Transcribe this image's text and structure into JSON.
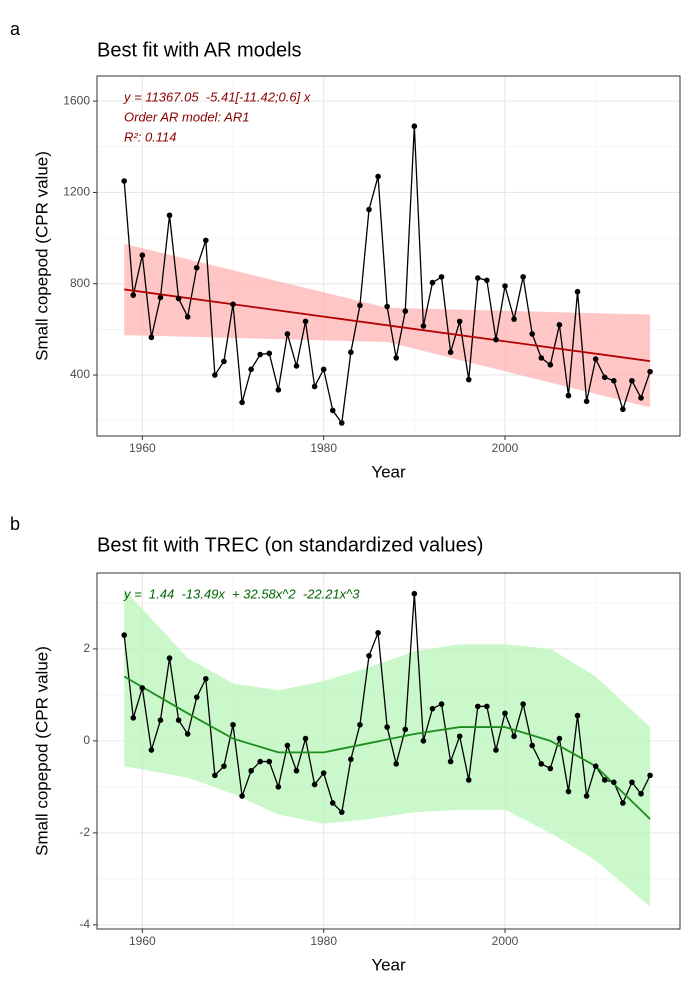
{
  "chart_data": [
    {
      "type": "line",
      "panel": "a",
      "title": "Best fit with AR models",
      "x_label": "Year",
      "y_label": "Small copepod (CPR value)",
      "annotations": [
        "y = 11367.05  -5.41[-11.42;0.6] x",
        "Order AR model: AR1",
        "R²: 0.114"
      ],
      "annotation_color": "#8b0000",
      "x": [
        1958,
        1959,
        1960,
        1961,
        1962,
        1963,
        1964,
        1965,
        1966,
        1967,
        1968,
        1969,
        1970,
        1971,
        1972,
        1973,
        1974,
        1975,
        1976,
        1977,
        1978,
        1979,
        1980,
        1981,
        1982,
        1983,
        1984,
        1985,
        1986,
        1987,
        1988,
        1989,
        1990,
        1991,
        1992,
        1993,
        1994,
        1995,
        1996,
        1997,
        1998,
        1999,
        2000,
        2001,
        2002,
        2003,
        2004,
        2005,
        2006,
        2007,
        2008,
        2009,
        2010,
        2011,
        2012,
        2013,
        2014,
        2015,
        2016
      ],
      "values": [
        1250,
        750,
        925,
        565,
        740,
        1100,
        735,
        655,
        870,
        990,
        400,
        460,
        710,
        280,
        425,
        490,
        495,
        335,
        580,
        440,
        635,
        350,
        425,
        245,
        190,
        500,
        705,
        1125,
        1270,
        700,
        475,
        680,
        1490,
        615,
        805,
        830,
        500,
        635,
        380,
        825,
        815,
        555,
        790,
        645,
        830,
        580,
        475,
        445,
        620,
        310,
        765,
        285,
        470,
        390,
        375,
        250,
        375,
        300,
        415
      ],
      "color": "#000000",
      "fit": {
        "x": [
          1958,
          2016
        ],
        "values": [
          775,
          461
        ],
        "color": "#b30000"
      },
      "band": {
        "x": [
          1958,
          1987,
          2016
        ],
        "lower": [
          575,
          545,
          258
        ],
        "upper": [
          975,
          695,
          665
        ],
        "color": "#ffb3b3"
      },
      "xlim": [
        1955,
        2019.3
      ],
      "ylim": [
        133,
        1710
      ],
      "xticks": [
        1960,
        1980,
        2000
      ],
      "yticks": [
        400,
        800,
        1200,
        1600
      ],
      "grid": true
    },
    {
      "type": "line",
      "panel": "b",
      "title": "Best fit with TREC (on standardized values)",
      "x_label": "Year",
      "y_label": "Small copepod (CPR value)",
      "annotations": [
        "y =  1.44  -13.49x  + 32.58x^2  -22.21x^3"
      ],
      "annotation_color": "#006400",
      "x": [
        1958,
        1959,
        1960,
        1961,
        1962,
        1963,
        1964,
        1965,
        1966,
        1967,
        1968,
        1969,
        1970,
        1971,
        1972,
        1973,
        1974,
        1975,
        1976,
        1977,
        1978,
        1979,
        1980,
        1981,
        1982,
        1983,
        1984,
        1985,
        1986,
        1987,
        1988,
        1989,
        1990,
        1991,
        1992,
        1993,
        1994,
        1995,
        1996,
        1997,
        1998,
        1999,
        2000,
        2001,
        2002,
        2003,
        2004,
        2005,
        2006,
        2007,
        2008,
        2009,
        2010,
        2011,
        2012,
        2013,
        2014,
        2015,
        2016
      ],
      "values": [
        2.3,
        0.5,
        1.15,
        -0.2,
        0.45,
        1.8,
        0.45,
        0.15,
        0.95,
        1.35,
        -0.75,
        -0.55,
        0.35,
        -1.2,
        -0.65,
        -0.45,
        -0.45,
        -1.0,
        -0.1,
        -0.65,
        0.05,
        -0.95,
        -0.7,
        -1.35,
        -1.55,
        -0.4,
        0.35,
        1.85,
        2.35,
        0.3,
        -0.5,
        0.25,
        3.2,
        0.0,
        0.7,
        0.8,
        -0.45,
        0.1,
        -0.85,
        0.75,
        0.75,
        -0.2,
        0.6,
        0.1,
        0.8,
        -0.1,
        -0.5,
        -0.6,
        0.05,
        -1.1,
        0.55,
        -1.2,
        -0.55,
        -0.85,
        -0.9,
        -1.35,
        -0.9,
        -1.15,
        -0.75
      ],
      "color": "#000000",
      "fit": {
        "x": [
          1958,
          1965,
          1970,
          1975,
          1980,
          1985,
          1990,
          1995,
          2000,
          2005,
          2010,
          2016
        ],
        "values": [
          1.4,
          0.6,
          0.05,
          -0.25,
          -0.25,
          -0.05,
          0.15,
          0.3,
          0.3,
          0.0,
          -0.55,
          -1.7
        ],
        "color": "#1e8c1e"
      },
      "band": {
        "x": [
          1958,
          1965,
          1970,
          1975,
          1980,
          1985,
          1990,
          1995,
          2000,
          2005,
          2010,
          2016
        ],
        "lower": [
          -0.55,
          -0.8,
          -1.15,
          -1.6,
          -1.8,
          -1.7,
          -1.55,
          -1.5,
          -1.5,
          -2.0,
          -2.6,
          -3.6
        ],
        "upper": [
          3.3,
          1.8,
          1.25,
          1.1,
          1.3,
          1.6,
          1.95,
          2.1,
          2.1,
          2.0,
          1.4,
          0.3
        ],
        "color": "#b8f5b8"
      },
      "xlim": [
        1955,
        2019.3
      ],
      "ylim": [
        -4.09,
        3.65
      ],
      "xticks": [
        1960,
        1980,
        2000
      ],
      "yticks": [
        -4,
        -2,
        0,
        2
      ],
      "grid": true
    }
  ]
}
